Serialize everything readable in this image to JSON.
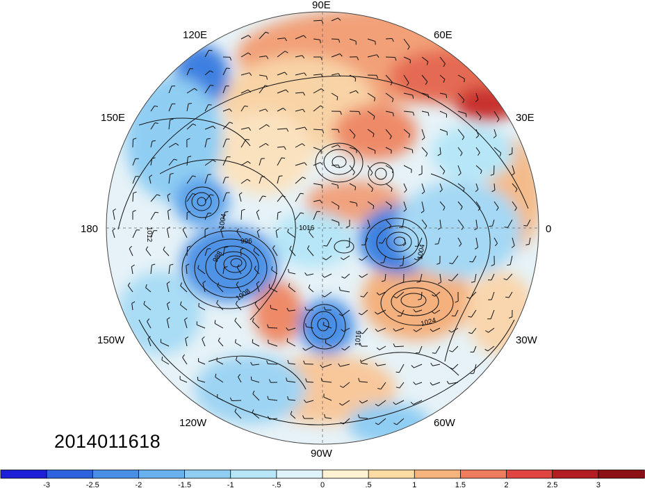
{
  "timestamp": "2014011618",
  "longitude_labels": [
    "90E",
    "60E",
    "30E",
    "0",
    "30W",
    "60W",
    "90W",
    "120W",
    "150W",
    "180",
    "150E",
    "120E"
  ],
  "isobar_labels": [
    "1012",
    "1004",
    "996",
    "988",
    "1008",
    "1016",
    "1024",
    "1016",
    "1004"
  ],
  "colorbar": {
    "ticks": [
      "-3",
      "-2.5",
      "-2",
      "-1.5",
      "-1",
      "-.5",
      "0",
      ".5",
      "1",
      "1.5",
      "2",
      "2.5",
      "3"
    ],
    "colors": [
      "#1d1ed8",
      "#2e63e0",
      "#4a8fe6",
      "#69b1ee",
      "#8fcdf3",
      "#b6e6f7",
      "#dff4fa",
      "#fdf3d2",
      "#fcdca2",
      "#f6b37c",
      "#ee7d5e",
      "#e04542",
      "#b31c22",
      "#8c0f16"
    ]
  },
  "colors": {
    "background": "#ffffff",
    "cold_strong": "#3f7fe0",
    "cold": "#8fcdf3",
    "neutral": "#f0f4f6",
    "warm": "#f6b37c",
    "warm_strong": "#e04542"
  },
  "icons": [
    "polar-map",
    "colorbar"
  ]
}
